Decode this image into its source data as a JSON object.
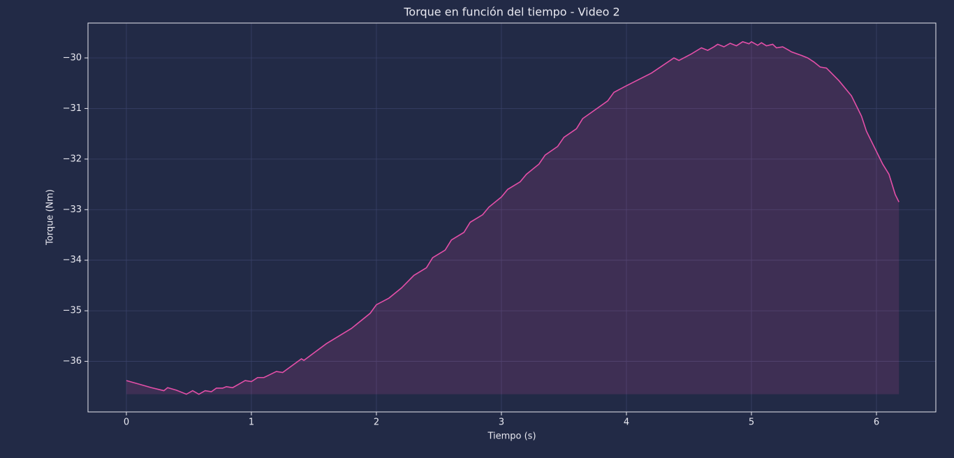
{
  "chart_data": {
    "type": "line",
    "title": "Torque en función del tiempo - Video 2",
    "xlabel": "Tiempo (s)",
    "ylabel": "Torque (Nm)",
    "x": [
      0,
      0.1,
      0.2,
      0.3,
      0.33,
      0.4,
      0.48,
      0.53,
      0.58,
      0.63,
      0.68,
      0.72,
      0.77,
      0.8,
      0.85,
      0.9,
      0.95,
      1.0,
      1.05,
      1.1,
      1.2,
      1.25,
      1.4,
      1.42,
      1.6,
      1.8,
      1.95,
      2.0,
      2.1,
      2.2,
      2.3,
      2.4,
      2.45,
      2.55,
      2.6,
      2.7,
      2.75,
      2.85,
      2.9,
      3.0,
      3.05,
      3.15,
      3.2,
      3.3,
      3.35,
      3.45,
      3.5,
      3.6,
      3.65,
      3.85,
      3.9,
      4.0,
      4.2,
      4.38,
      4.42,
      4.52,
      4.6,
      4.65,
      4.7,
      4.73,
      4.78,
      4.83,
      4.88,
      4.93,
      4.98,
      5.0,
      5.05,
      5.08,
      5.12,
      5.17,
      5.2,
      5.25,
      5.3,
      5.32,
      5.4,
      5.45,
      5.5,
      5.55,
      5.6,
      5.7,
      5.8,
      5.85,
      5.88,
      5.92,
      5.98,
      6.05,
      6.1,
      6.15,
      6.18
    ],
    "series": [
      {
        "name": "Torque",
        "color": "#e44fa8",
        "values": [
          -36.38,
          -36.45,
          -36.52,
          -36.58,
          -36.52,
          -36.57,
          -36.65,
          -36.58,
          -36.65,
          -36.58,
          -36.6,
          -36.53,
          -36.53,
          -36.5,
          -36.52,
          -36.45,
          -36.38,
          -36.4,
          -36.32,
          -36.32,
          -36.2,
          -36.22,
          -35.95,
          -35.98,
          -35.65,
          -35.35,
          -35.05,
          -34.88,
          -34.75,
          -34.55,
          -34.3,
          -34.15,
          -33.95,
          -33.8,
          -33.6,
          -33.45,
          -33.25,
          -33.1,
          -32.95,
          -32.75,
          -32.6,
          -32.45,
          -32.3,
          -32.1,
          -31.92,
          -31.75,
          -31.57,
          -31.4,
          -31.2,
          -30.85,
          -30.68,
          -30.55,
          -30.3,
          -30.0,
          -30.05,
          -29.92,
          -29.8,
          -29.85,
          -29.78,
          -29.73,
          -29.78,
          -29.71,
          -29.76,
          -29.68,
          -29.72,
          -29.68,
          -29.75,
          -29.7,
          -29.76,
          -29.73,
          -29.8,
          -29.78,
          -29.85,
          -29.88,
          -29.95,
          -30.0,
          -30.08,
          -30.18,
          -30.2,
          -30.45,
          -30.75,
          -31.0,
          -31.15,
          -31.45,
          -31.75,
          -32.1,
          -32.3,
          -32.7,
          -32.85
        ]
      }
    ],
    "xlim": [
      -0.307,
      6.475
    ],
    "xticks": [
      0,
      1,
      2,
      3,
      4,
      5,
      6
    ],
    "ylim": [
      -37.0,
      -29.31
    ],
    "yticks": [
      {
        "value": -36,
        "label": "−36"
      },
      {
        "value": -35,
        "label": "−35"
      },
      {
        "value": -34,
        "label": "−34"
      },
      {
        "value": -33,
        "label": "−33"
      },
      {
        "value": -32,
        "label": "−32"
      },
      {
        "value": -31,
        "label": "−31"
      },
      {
        "value": -30,
        "label": "−30"
      }
    ],
    "grid": true,
    "fill": true
  }
}
